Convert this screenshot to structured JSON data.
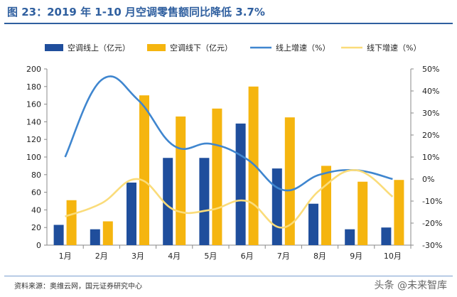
{
  "title": "图 23：2019 年 1-10 月空调零售额同比降低 3.7%",
  "source": "资料来源：奥维云网，国元证券研究中心",
  "watermark": "头条 @未来智库",
  "colors": {
    "bar_online": "#1f4e9c",
    "bar_offline": "#f5b50f",
    "line_online": "#3f86cf",
    "line_offline": "#fadc7a",
    "title": "#2f5f9f"
  },
  "chart_data": {
    "type": "bar+line",
    "categories": [
      "1月",
      "2月",
      "3月",
      "4月",
      "5月",
      "6月",
      "7月",
      "8月",
      "9月",
      "10月"
    ],
    "series": [
      {
        "name": "空调线上（亿元）",
        "type": "bar",
        "axis": "left",
        "values": [
          23,
          18,
          71,
          99,
          99,
          138,
          87,
          47,
          18,
          20
        ]
      },
      {
        "name": "空调线下（亿元）",
        "type": "bar",
        "axis": "left",
        "values": [
          51,
          27,
          170,
          146,
          155,
          180,
          145,
          90,
          72,
          74
        ]
      },
      {
        "name": "线上增速（%）",
        "type": "line",
        "axis": "right",
        "values": [
          10,
          45,
          36,
          15,
          16,
          9,
          -5,
          2,
          4,
          0
        ]
      },
      {
        "name": "线下增速（%）",
        "type": "line",
        "axis": "right",
        "values": [
          -17,
          -11,
          0,
          -14,
          -14,
          -10,
          -22,
          -5,
          4,
          -8
        ]
      }
    ],
    "left_axis": {
      "min": 0,
      "max": 200,
      "step": 20,
      "ticks": [
        "0",
        "20",
        "40",
        "60",
        "80",
        "100",
        "120",
        "140",
        "160",
        "180",
        "200"
      ]
    },
    "right_axis": {
      "min": -30,
      "max": 50,
      "step": 10,
      "ticks": [
        "-30%",
        "-20%",
        "-10%",
        "0%",
        "10%",
        "20%",
        "30%",
        "40%",
        "50%"
      ]
    },
    "legend_position": "top",
    "grid": false
  }
}
